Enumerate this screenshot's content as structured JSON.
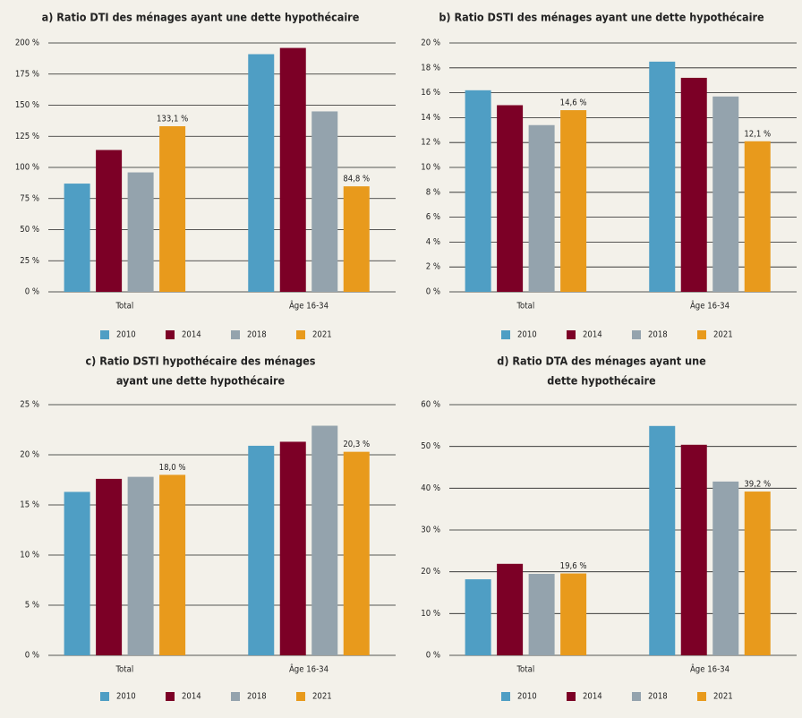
{
  "chart_data": [
    {
      "type": "bar",
      "title": [
        "a) Ratio DTI des ménages ayant une dette hypothécaire"
      ],
      "categories": [
        "Total",
        "Âge 16-34"
      ],
      "series": [
        {
          "name": "2010",
          "color": "#4f9ec4",
          "values": [
            87,
            191
          ]
        },
        {
          "name": "2014",
          "color": "#7c0026",
          "values": [
            114,
            196
          ]
        },
        {
          "name": "2018",
          "color": "#94a3ad",
          "values": [
            96,
            145
          ]
        },
        {
          "name": "2021",
          "color": "#e89a1c",
          "values": [
            133.1,
            84.8
          ],
          "value_labels": [
            "133,1 %",
            "84,8 %"
          ]
        }
      ],
      "ylim": [
        0,
        200
      ],
      "yticks": [
        {
          "value": 0,
          "label": "0 %"
        },
        {
          "value": 25,
          "label": "25 %"
        },
        {
          "value": 50,
          "label": "50 %"
        },
        {
          "value": 75,
          "label": "75 %"
        },
        {
          "value": 100,
          "label": "100 %"
        },
        {
          "value": 125,
          "label": "125 %"
        },
        {
          "value": 150,
          "label": "150 %"
        },
        {
          "value": 175,
          "label": "175 %"
        },
        {
          "value": 200,
          "label": "200 %"
        }
      ],
      "grid": true,
      "legend": "bottom"
    },
    {
      "type": "bar",
      "title": [
        "b) Ratio DSTI des ménages ayant une dette hypothécaire"
      ],
      "categories": [
        "Total",
        "Âge 16-34"
      ],
      "series": [
        {
          "name": "2010",
          "color": "#4f9ec4",
          "values": [
            16.2,
            18.5
          ]
        },
        {
          "name": "2014",
          "color": "#7c0026",
          "values": [
            15.0,
            17.2
          ]
        },
        {
          "name": "2018",
          "color": "#94a3ad",
          "values": [
            13.4,
            15.7
          ]
        },
        {
          "name": "2021",
          "color": "#e89a1c",
          "values": [
            14.6,
            12.1
          ],
          "value_labels": [
            "14,6 %",
            "12,1 %"
          ]
        }
      ],
      "ylim": [
        0,
        20
      ],
      "yticks": [
        {
          "value": 0,
          "label": "0 %"
        },
        {
          "value": 2,
          "label": "2 %"
        },
        {
          "value": 4,
          "label": "4 %"
        },
        {
          "value": 6,
          "label": "6 %"
        },
        {
          "value": 8,
          "label": "8 %"
        },
        {
          "value": 10,
          "label": "10 %"
        },
        {
          "value": 12,
          "label": "12 %"
        },
        {
          "value": 14,
          "label": "14 %"
        },
        {
          "value": 16,
          "label": "16 %"
        },
        {
          "value": 18,
          "label": "18 %"
        },
        {
          "value": 20,
          "label": "20 %"
        }
      ],
      "grid": true,
      "legend": "bottom"
    },
    {
      "type": "bar",
      "title": [
        "c) Ratio DSTI hypothécaire des ménages",
        "ayant une dette hypothécaire"
      ],
      "categories": [
        "Total",
        "Âge 16-34"
      ],
      "series": [
        {
          "name": "2010",
          "color": "#4f9ec4",
          "values": [
            16.3,
            20.9
          ]
        },
        {
          "name": "2014",
          "color": "#7c0026",
          "values": [
            17.6,
            21.3
          ]
        },
        {
          "name": "2018",
          "color": "#94a3ad",
          "values": [
            17.8,
            22.9
          ]
        },
        {
          "name": "2021",
          "color": "#e89a1c",
          "values": [
            18.0,
            20.3
          ],
          "value_labels": [
            "18,0 %",
            "20,3 %"
          ]
        }
      ],
      "ylim": [
        0,
        25
      ],
      "yticks": [
        {
          "value": 0,
          "label": "0 %"
        },
        {
          "value": 5,
          "label": "5 %"
        },
        {
          "value": 10,
          "label": "10 %"
        },
        {
          "value": 15,
          "label": "15 %"
        },
        {
          "value": 20,
          "label": "20 %"
        },
        {
          "value": 25,
          "label": "25 %"
        }
      ],
      "grid": true,
      "legend": "bottom"
    },
    {
      "type": "bar",
      "title": [
        "d) Ratio DTA des ménages ayant une",
        "dette hypothécaire"
      ],
      "categories": [
        "Total",
        "Âge 16-34"
      ],
      "series": [
        {
          "name": "2010",
          "color": "#4f9ec4",
          "values": [
            18.2,
            54.9
          ]
        },
        {
          "name": "2014",
          "color": "#7c0026",
          "values": [
            21.9,
            50.4
          ]
        },
        {
          "name": "2018",
          "color": "#94a3ad",
          "values": [
            19.5,
            41.6
          ]
        },
        {
          "name": "2021",
          "color": "#e89a1c",
          "values": [
            19.6,
            39.2
          ],
          "value_labels": [
            "19,6 %",
            "39,2 %"
          ]
        }
      ],
      "ylim": [
        0,
        60
      ],
      "yticks": [
        {
          "value": 0,
          "label": "0 %"
        },
        {
          "value": 10,
          "label": "10 %"
        },
        {
          "value": 20,
          "label": "20 %"
        },
        {
          "value": 30,
          "label": "30 %"
        },
        {
          "value": 40,
          "label": "40 %"
        },
        {
          "value": 50,
          "label": "50 %"
        },
        {
          "value": 60,
          "label": "60 %"
        }
      ],
      "grid": true,
      "legend": "bottom"
    }
  ]
}
